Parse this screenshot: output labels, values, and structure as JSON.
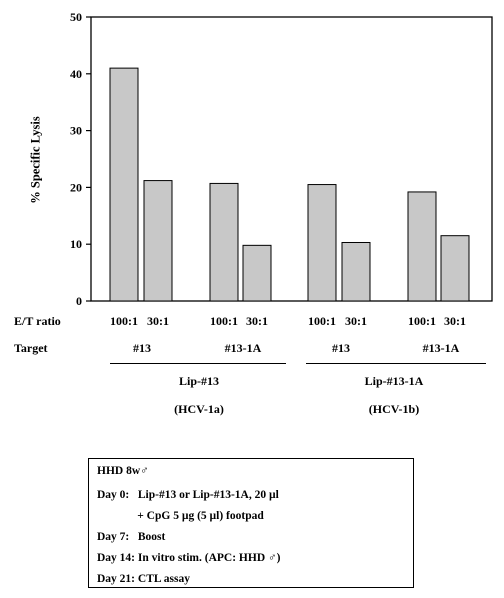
{
  "chart_data": {
    "type": "bar",
    "ylabel": "% Specific Lysis",
    "ylim": [
      0,
      50
    ],
    "yticks": [
      0,
      10,
      20,
      30,
      40,
      50
    ],
    "series": [
      {
        "values": [
          41,
          21.2,
          20.7,
          9.8,
          20.5,
          10.3,
          19.2,
          11.5
        ]
      }
    ],
    "categories": [
      "100:1",
      "30:1",
      "100:1",
      "30:1",
      "100:1",
      "30:1",
      "100:1",
      "30:1"
    ],
    "row_labels": {
      "et": "E/T ratio",
      "target": "Target"
    },
    "targets": [
      "#13",
      "#13-1A",
      "#13",
      "#13-1A"
    ],
    "groups": [
      {
        "name": "Lip-#13",
        "sub": "(HCV-1a)"
      },
      {
        "name": "Lip-#13-1A",
        "sub": "(HCV-1b)"
      }
    ],
    "bar_color": "#c8c8c8",
    "grid": false
  },
  "protocol": {
    "title": "HHD 8w♂",
    "lines": [
      "Day 0:   Lip-#13 or Lip-#13-1A, 20 µl",
      "              + CpG 5 µg (5 µl) footpad",
      "Day 7:   Boost",
      "Day 14: In vitro stim. (APC: HHD ♂)",
      "Day 21: CTL assay"
    ]
  }
}
